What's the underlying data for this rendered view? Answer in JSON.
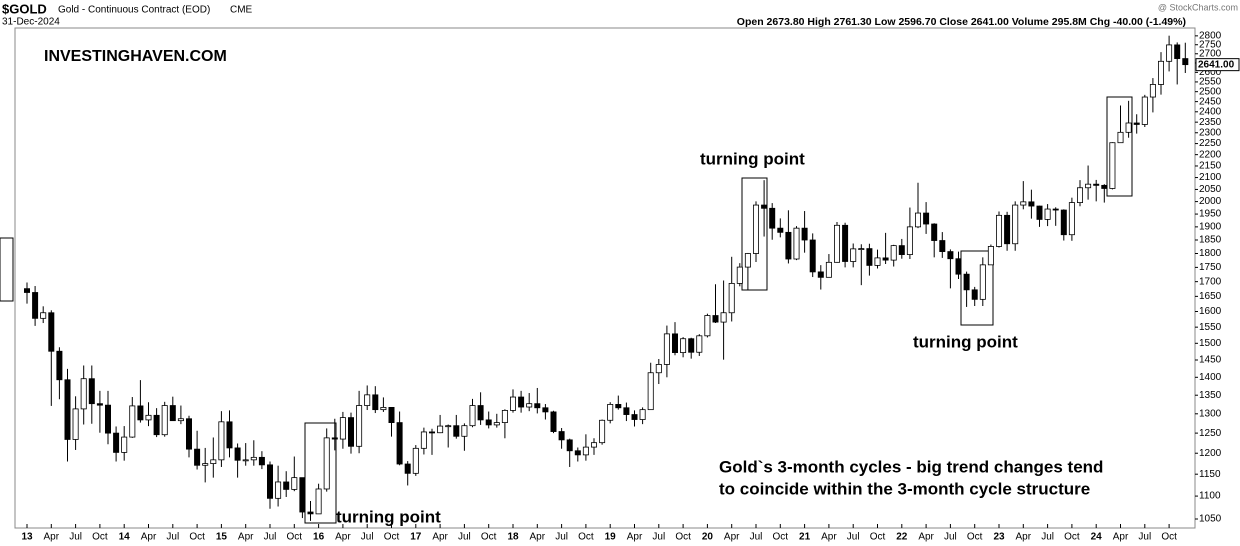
{
  "chart_data": {
    "type": "candlestick",
    "title": "$GOLD",
    "subtitle": "Gold - Continuous Contract (EOD)",
    "exchange": "CME",
    "date": "31-Dec-2024",
    "summary": "Open 2673.80 High 2761.30 Low 2596.70 Close 2641.00 Volume 295.8M Chg -40.00 (-1.49%)",
    "credit": "@ StockCharts.com",
    "watermark": "INVESTINGHAVEN.COM",
    "annotations": [
      "turning point",
      "turning point",
      "turning point",
      "Gold`s 3-month cycles - big trend changes tend",
      "to coincide within the 3-month cycle structure"
    ],
    "log_scale": true,
    "up_color": "#ffffff",
    "down_color": "#000000",
    "ylim": [
      1031,
      2845
    ],
    "yticks": [
      1050,
      1100,
      1150,
      1200,
      1250,
      1300,
      1350,
      1400,
      1450,
      1500,
      1550,
      1600,
      1650,
      1700,
      1750,
      1800,
      1850,
      1900,
      1950,
      2000,
      2050,
      2100,
      2150,
      2200,
      2250,
      2300,
      2350,
      2400,
      2450,
      2500,
      2550,
      2600,
      2650,
      2700,
      2750,
      2800
    ],
    "last_price": {
      "value": 2641,
      "label": "2641.00"
    },
    "categories": [
      "13",
      null,
      null,
      "Apr",
      null,
      null,
      "Jul",
      null,
      null,
      "Oct",
      null,
      null,
      "14",
      null,
      null,
      "Apr",
      null,
      null,
      "Jul",
      null,
      null,
      "Oct",
      null,
      null,
      "15",
      null,
      null,
      "Apr",
      null,
      null,
      "Jul",
      null,
      null,
      "Oct",
      null,
      null,
      "16",
      null,
      null,
      "Apr",
      null,
      null,
      "Jul",
      null,
      null,
      "Oct",
      null,
      null,
      "17",
      null,
      null,
      "Apr",
      null,
      null,
      "Jul",
      null,
      null,
      "Oct",
      null,
      null,
      "18",
      null,
      null,
      "Apr",
      null,
      null,
      "Jul",
      null,
      null,
      "Oct",
      null,
      null,
      "19",
      null,
      null,
      "Apr",
      null,
      null,
      "Jul",
      null,
      null,
      "Oct",
      null,
      null,
      "20",
      null,
      null,
      "Apr",
      null,
      null,
      "Jul",
      null,
      null,
      "Oct",
      null,
      null,
      "21",
      null,
      null,
      "Apr",
      null,
      null,
      "Jul",
      null,
      null,
      "Oct",
      null,
      null,
      "22",
      null,
      null,
      "Apr",
      null,
      null,
      "Jul",
      null,
      null,
      "Oct",
      null,
      null,
      "23",
      null,
      null,
      "Apr",
      null,
      null,
      "Jul",
      null,
      null,
      "Oct",
      null,
      null,
      "24",
      null,
      null,
      "Apr",
      null,
      null,
      "Jul",
      null,
      null,
      "Oct",
      null,
      null
    ],
    "open": [
      1676,
      1663,
      1578,
      1596,
      1476,
      1393,
      1234,
      1313,
      1396,
      1327,
      1323,
      1250,
      1202,
      1240,
      1321,
      1284,
      1296,
      1246,
      1322,
      1282,
      1287,
      1210,
      1171,
      1175,
      1184,
      1279,
      1213,
      1183,
      1184,
      1190,
      1172,
      1095,
      1132,
      1115,
      1142,
      1065,
      1061,
      1116,
      1238,
      1235,
      1290,
      1217,
      1322,
      1351,
      1311,
      1317,
      1277,
      1174,
      1152,
      1212,
      1253,
      1251,
      1268,
      1269,
      1242,
      1269,
      1322,
      1284,
      1271,
      1277,
      1309,
      1345,
      1318,
      1327,
      1316,
      1305,
      1254,
      1233,
      1206,
      1196,
      1215,
      1226,
      1283,
      1325,
      1316,
      1298,
      1285,
      1311,
      1413,
      1437,
      1529,
      1472,
      1514,
      1473,
      1523,
      1587,
      1566,
      1596,
      1694,
      1751,
      1800,
      1986,
      1973,
      1895,
      1879,
      1780,
      1895,
      1850,
      1734,
      1715,
      1768,
      1906,
      1771,
      1817,
      1818,
      1757,
      1784,
      1776,
      1829,
      1796,
      1900,
      1954,
      1911,
      1848,
      1807,
      1781,
      1726,
      1672,
      1640,
      1759,
      1826,
      1945,
      1836,
      1986,
      1999,
      1982,
      1929,
      1970,
      1966,
      1870,
      1996,
      2057,
      2072,
      2067,
      2054,
      2254,
      2302,
      2346,
      2339,
      2473,
      2537,
      2659,
      2749,
      2673.8
    ],
    "high": [
      1697,
      1685,
      1617,
      1604,
      1488,
      1424,
      1347,
      1434,
      1434,
      1362,
      1362,
      1267,
      1268,
      1345,
      1392,
      1331,
      1315,
      1332,
      1346,
      1322,
      1295,
      1256,
      1213,
      1239,
      1307,
      1309,
      1224,
      1225,
      1232,
      1205,
      1180,
      1170,
      1157,
      1192,
      1142,
      1089,
      1128,
      1262,
      1287,
      1305,
      1303,
      1362,
      1377,
      1375,
      1344,
      1317,
      1306,
      1181,
      1220,
      1264,
      1261,
      1297,
      1272,
      1297,
      1275,
      1340,
      1358,
      1306,
      1300,
      1312,
      1366,
      1362,
      1356,
      1370,
      1326,
      1308,
      1263,
      1236,
      1214,
      1247,
      1237,
      1285,
      1331,
      1349,
      1330,
      1309,
      1317,
      1442,
      1453,
      1555,
      1566,
      1519,
      1517,
      1528,
      1593,
      1691,
      1704,
      1788,
      1765,
      1802,
      2001,
      2089,
      1994,
      1933,
      1965,
      1903,
      1962,
      1875,
      1758,
      1798,
      1919,
      1916,
      1837,
      1834,
      1836,
      1814,
      1877,
      1832,
      1854,
      1976,
      2078,
      1998,
      1914,
      1880,
      1815,
      1807,
      1735,
      1682,
      1786,
      1833,
      1960,
      1959,
      2001,
      2085,
      2049,
      1983,
      1990,
      1977,
      1969,
      2016,
      2089,
      2152,
      2090,
      2072,
      2256,
      2431,
      2454,
      2388,
      2484,
      2570,
      2709,
      2801,
      2763,
      2761.3
    ],
    "low": [
      1626,
      1554,
      1563,
      1321,
      1339,
      1180,
      1208,
      1272,
      1274,
      1251,
      1222,
      1180,
      1182,
      1238,
      1277,
      1268,
      1240,
      1241,
      1282,
      1273,
      1190,
      1161,
      1131,
      1142,
      1167,
      1190,
      1142,
      1170,
      1170,
      1162,
      1072,
      1077,
      1098,
      1111,
      1052,
      1046,
      1062,
      1110,
      1207,
      1211,
      1199,
      1200,
      1310,
      1302,
      1305,
      1241,
      1171,
      1124,
      1146,
      1197,
      1196,
      1250,
      1214,
      1236,
      1206,
      1265,
      1271,
      1262,
      1264,
      1237,
      1303,
      1303,
      1307,
      1301,
      1285,
      1250,
      1211,
      1167,
      1180,
      1182,
      1196,
      1221,
      1275,
      1311,
      1281,
      1267,
      1273,
      1311,
      1381,
      1400,
      1464,
      1458,
      1454,
      1462,
      1518,
      1563,
      1451,
      1568,
      1684,
      1673,
      1769,
      1863,
      1851,
      1860,
      1764,
      1776,
      1803,
      1716,
      1673,
      1727,
      1767,
      1750,
      1750,
      1688,
      1721,
      1746,
      1762,
      1753,
      1781,
      1780,
      1895,
      1873,
      1786,
      1784,
      1677,
      1709,
      1615,
      1618,
      1618,
      1760,
      1822,
      1810,
      1810,
      1969,
      1932,
      1900,
      1903,
      1904,
      1848,
      1847,
      1981,
      2008,
      2001,
      1996,
      2050,
      2253,
      2277,
      2296,
      2327,
      2397,
      2485,
      2605,
      2537,
      2596.7
    ],
    "close": [
      1663,
      1578,
      1596,
      1476,
      1393,
      1234,
      1313,
      1396,
      1327,
      1323,
      1250,
      1202,
      1240,
      1321,
      1284,
      1296,
      1246,
      1322,
      1282,
      1287,
      1210,
      1171,
      1175,
      1184,
      1279,
      1213,
      1183,
      1184,
      1190,
      1172,
      1095,
      1132,
      1115,
      1142,
      1065,
      1061,
      1116,
      1238,
      1235,
      1290,
      1217,
      1322,
      1351,
      1311,
      1317,
      1277,
      1174,
      1152,
      1212,
      1253,
      1251,
      1268,
      1269,
      1242,
      1269,
      1322,
      1284,
      1271,
      1277,
      1309,
      1345,
      1318,
      1327,
      1316,
      1305,
      1254,
      1233,
      1206,
      1196,
      1215,
      1226,
      1283,
      1325,
      1316,
      1298,
      1285,
      1311,
      1413,
      1437,
      1529,
      1472,
      1514,
      1473,
      1523,
      1587,
      1566,
      1596,
      1694,
      1751,
      1800,
      1986,
      1973,
      1895,
      1879,
      1780,
      1895,
      1850,
      1734,
      1715,
      1768,
      1906,
      1771,
      1817,
      1818,
      1757,
      1784,
      1776,
      1829,
      1796,
      1900,
      1954,
      1911,
      1848,
      1807,
      1781,
      1726,
      1672,
      1640,
      1759,
      1826,
      1945,
      1836,
      1986,
      1999,
      1982,
      1929,
      1970,
      1966,
      1870,
      1996,
      2057,
      2072,
      2067,
      2054,
      2254,
      2302,
      2346,
      2339,
      2473,
      2537,
      2659,
      2749,
      2673.8,
      2641
    ]
  }
}
